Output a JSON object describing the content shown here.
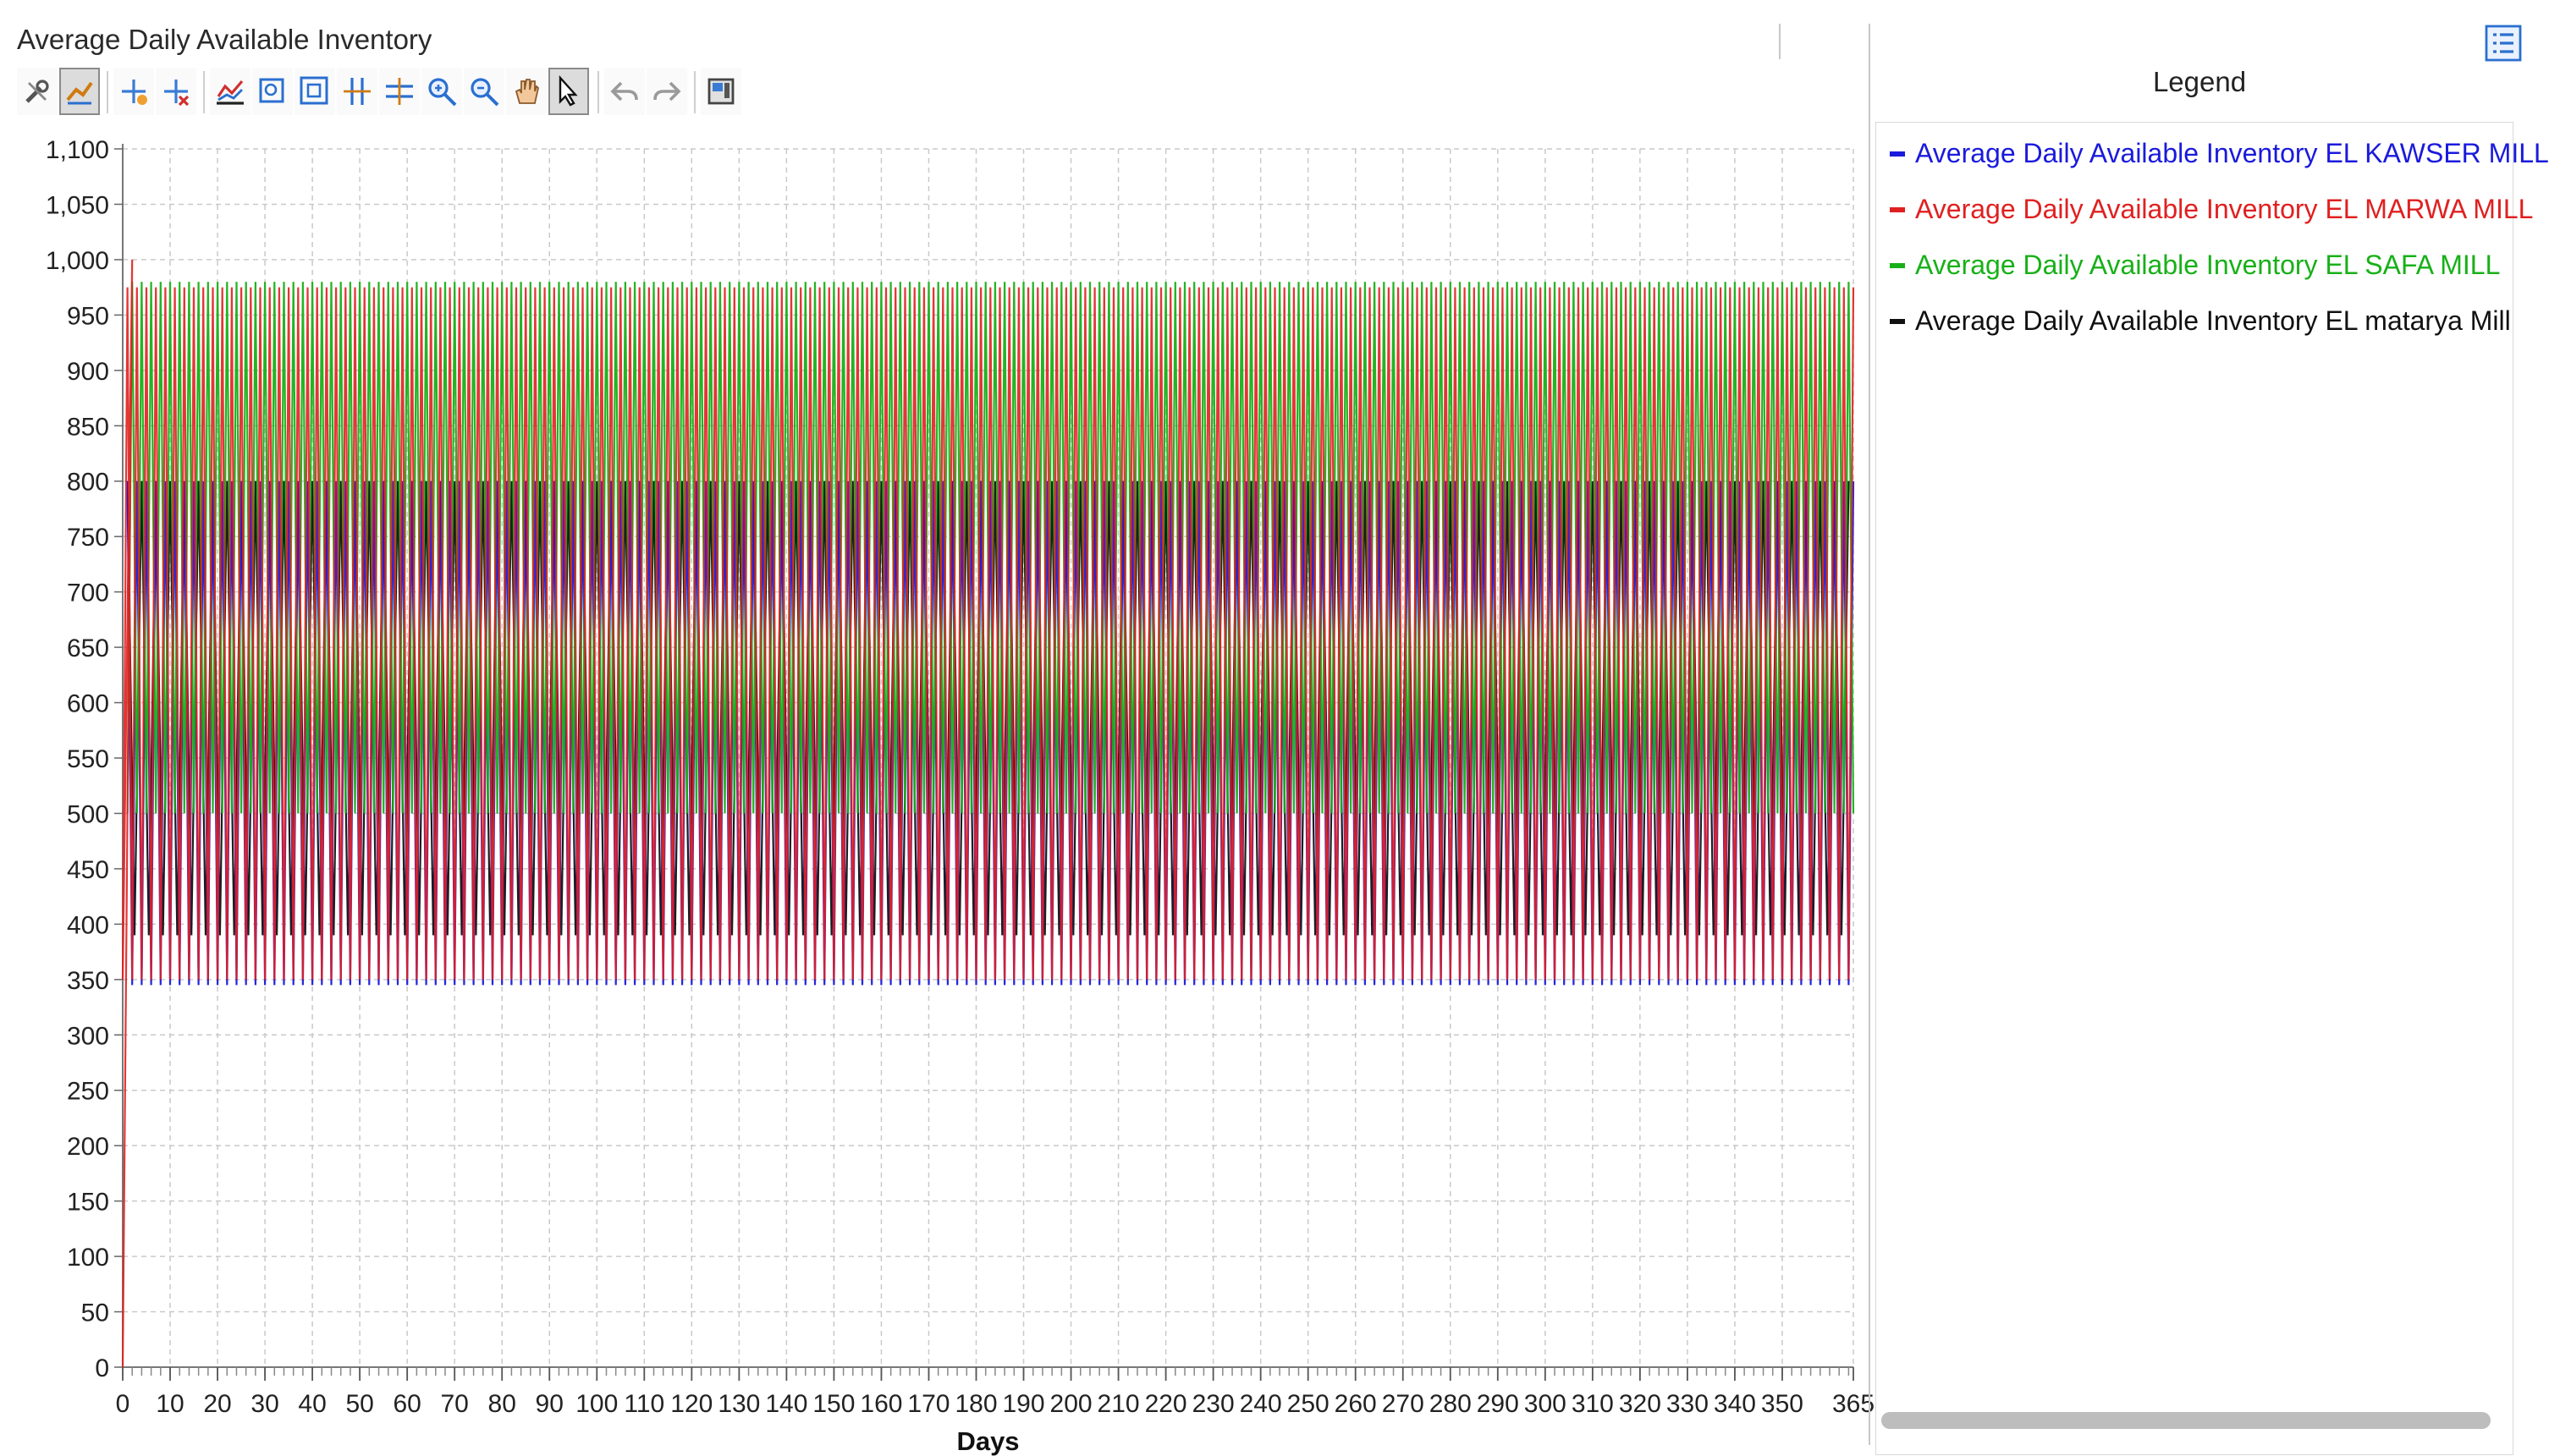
{
  "window": {
    "title": "Average Daily Available Inventory"
  },
  "toolbar": {
    "buttons": [
      {
        "name": "chart-settings-button",
        "icon": "wrench-icon"
      },
      {
        "name": "series-style-button",
        "icon": "line-style-icon",
        "pressed": true
      },
      {
        "name": "add-marker-button",
        "icon": "marker-add-icon"
      },
      {
        "name": "remove-marker-button",
        "icon": "marker-remove-icon"
      },
      {
        "name": "chart-type-button",
        "icon": "chart-type-icon"
      },
      {
        "name": "zoom-box-button",
        "icon": "zoom-box-icon"
      },
      {
        "name": "zoom-fit-button",
        "icon": "zoom-fit-icon"
      },
      {
        "name": "zoom-horizontal-button",
        "icon": "zoom-horizontal-icon"
      },
      {
        "name": "zoom-vertical-button",
        "icon": "zoom-vertical-icon"
      },
      {
        "name": "zoom-in-button",
        "icon": "zoom-in-icon"
      },
      {
        "name": "zoom-out-button",
        "icon": "zoom-out-icon"
      },
      {
        "name": "pan-button",
        "icon": "hand-icon"
      },
      {
        "name": "select-button",
        "icon": "cursor-icon",
        "pressed": true
      },
      {
        "name": "undo-button",
        "icon": "undo-icon",
        "disabled": true
      },
      {
        "name": "redo-button",
        "icon": "redo-icon",
        "disabled": true
      },
      {
        "name": "export-button",
        "icon": "export-icon"
      }
    ]
  },
  "legend": {
    "title": "Legend",
    "button_icon": "legend-list-icon",
    "items": [
      {
        "label": "Average Daily Available Inventory EL KAWSER MILL",
        "color": "#1a1adc"
      },
      {
        "label": "Average Daily Available Inventory EL MARWA MILL",
        "color": "#e02020"
      },
      {
        "label": "Average Daily Available Inventory EL SAFA MILL",
        "color": "#18b018"
      },
      {
        "label": "Average Daily Available Inventory EL matarya Mill",
        "color": "#111111"
      }
    ]
  },
  "chart_data": {
    "type": "line",
    "xlabel": "Days",
    "ylabel": "",
    "xlim": [
      0,
      365
    ],
    "ylim": [
      0,
      1100
    ],
    "x_ticks": [
      0,
      10,
      20,
      30,
      40,
      50,
      60,
      70,
      80,
      90,
      100,
      110,
      120,
      130,
      140,
      150,
      160,
      170,
      180,
      190,
      200,
      210,
      220,
      230,
      240,
      250,
      260,
      270,
      280,
      290,
      300,
      310,
      320,
      330,
      340,
      350,
      365
    ],
    "y_ticks": [
      0,
      50,
      100,
      150,
      200,
      250,
      300,
      350,
      400,
      450,
      500,
      550,
      600,
      650,
      700,
      750,
      800,
      850,
      900,
      950,
      1000,
      1050,
      1100
    ],
    "y_tick_labels": [
      "0",
      "50",
      "100",
      "150",
      "200",
      "250",
      "300",
      "350",
      "400",
      "450",
      "500",
      "550",
      "600",
      "650",
      "700",
      "750",
      "800",
      "850",
      "900",
      "950",
      "1,000",
      "1,050",
      "1,100"
    ],
    "x_tick_labels": [
      "0",
      "10",
      "20",
      "30",
      "40",
      "50",
      "60",
      "70",
      "80",
      "90",
      "100",
      "110",
      "120",
      "130",
      "140",
      "150",
      "160",
      "170",
      "180",
      "190",
      "200",
      "210",
      "220",
      "230",
      "240",
      "250",
      "260",
      "270",
      "280",
      "290",
      "300",
      "310",
      "320",
      "330",
      "340",
      "350",
      "365"
    ],
    "grid": true,
    "legend_placement": "right panel",
    "series": [
      {
        "name": "Average Daily Available Inventory EL KAWSER MILL",
        "color": "#1a1adc",
        "pattern": {
          "start_x": 1,
          "period_days": 2,
          "peak": 800,
          "trough": 345,
          "peak_phase": 0
        }
      },
      {
        "name": "Average Daily Available Inventory EL MARWA MILL",
        "color": "#e02020",
        "pattern": {
          "start_x": 0,
          "initial_peak": 1000,
          "period_days": 2,
          "peak": 975,
          "trough": 350,
          "peak_phase": 1
        }
      },
      {
        "name": "Average Daily Available Inventory EL SAFA MILL",
        "color": "#18b018",
        "pattern": {
          "start_x": 1,
          "period_days": 2,
          "peak": 980,
          "trough": 500,
          "peak_phase": 1
        }
      },
      {
        "name": "Average Daily Available Inventory EL matarya Mill",
        "color": "#111111",
        "pattern": {
          "start_x": 1,
          "period_days": 3,
          "peak": 800,
          "trough": 390,
          "peak_phase": 0
        }
      }
    ]
  }
}
